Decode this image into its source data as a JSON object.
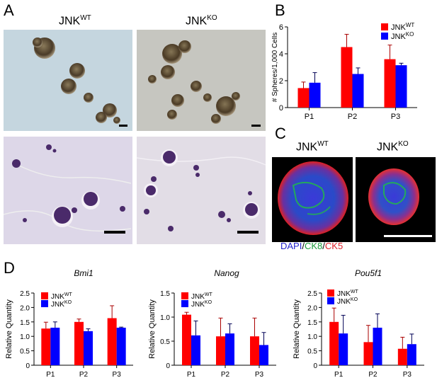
{
  "panels": {
    "a": "A",
    "b": "B",
    "c": "C",
    "d": "D"
  },
  "panel_a": {
    "col1_base": "JNK",
    "col1_sup": "WT",
    "col2_base": "JNK",
    "col2_sup": "KO"
  },
  "panel_c": {
    "col1_base": "JNK",
    "col1_sup": "WT",
    "col2_base": "JNK",
    "col2_sup": "KO",
    "stain_dapi": "DAPI",
    "stain_sep1": "/",
    "stain_ck8": "CK8",
    "stain_sep2": "/",
    "stain_ck5": "CK5",
    "dapi_color": "#2222cc",
    "ck8_color": "#1a9a3a",
    "ck5_color": "#e0202a"
  },
  "colors": {
    "wt": "#ff0000",
    "ko": "#0000ff"
  },
  "chart_data": [
    {
      "id": "B",
      "type": "bar",
      "categories": [
        "P1",
        "P2",
        "P3"
      ],
      "ylabel": "# Spheres/1,000 Cells",
      "ylim": [
        0,
        6
      ],
      "yticks": [
        0,
        2,
        4,
        6
      ],
      "legend": [
        {
          "base": "JNK",
          "sup": "WT"
        },
        {
          "base": "JNK",
          "sup": "KO"
        }
      ],
      "series": [
        {
          "values": [
            1.45,
            4.5,
            3.6
          ],
          "errors": [
            0.45,
            0.95,
            1.05
          ]
        },
        {
          "values": [
            1.85,
            2.5,
            3.15
          ],
          "errors": [
            0.75,
            0.45,
            0.15
          ]
        }
      ]
    },
    {
      "id": "Bmi1",
      "type": "bar",
      "title": "Bmi1",
      "categories": [
        "P1",
        "P2",
        "P3"
      ],
      "ylabel": "Relative Quantity",
      "ylim": [
        0,
        2.5
      ],
      "yticks": [
        "0",
        "0.5",
        "1.0",
        "1.5",
        "2.0",
        "2.5"
      ],
      "legend": [
        {
          "base": "JNK",
          "sup": "WT"
        },
        {
          "base": "JNK",
          "sup": "KO"
        }
      ],
      "series": [
        {
          "values": [
            1.27,
            1.5,
            1.63
          ],
          "errors": [
            0.22,
            0.1,
            0.43
          ]
        },
        {
          "values": [
            1.3,
            1.18,
            1.3
          ],
          "errors": [
            0.2,
            0.08,
            0.02
          ]
        }
      ]
    },
    {
      "id": "Nanog",
      "type": "bar",
      "title": "Nanog",
      "categories": [
        "P1",
        "P2",
        "P3"
      ],
      "ylabel": "Relative Quantity",
      "ylim": [
        0,
        1.5
      ],
      "yticks": [
        "0",
        "0.5",
        "1.0",
        "1.5"
      ],
      "legend": [
        {
          "base": "JNK",
          "sup": "WT"
        },
        {
          "base": "JNK",
          "sup": "KO"
        }
      ],
      "series": [
        {
          "values": [
            1.05,
            0.6,
            0.6
          ],
          "errors": [
            0.05,
            0.38,
            0.38
          ]
        },
        {
          "values": [
            0.62,
            0.66,
            0.42
          ],
          "errors": [
            0.3,
            0.2,
            0.26
          ]
        }
      ]
    },
    {
      "id": "Pou5f1",
      "type": "bar",
      "title": "Pou5f1",
      "categories": [
        "P1",
        "P2",
        "P3"
      ],
      "ylabel": "Relative Quantity",
      "ylim": [
        0,
        2.5
      ],
      "yticks": [
        "0",
        "0.5",
        "1.0",
        "1.5",
        "2.0",
        "2.5"
      ],
      "legend": [
        {
          "base": "JNK",
          "sup": "WT"
        },
        {
          "base": "JNK",
          "sup": "KO"
        }
      ],
      "series": [
        {
          "values": [
            1.5,
            0.8,
            0.57
          ],
          "errors": [
            0.48,
            0.58,
            0.4
          ]
        },
        {
          "values": [
            1.1,
            1.3,
            0.73
          ],
          "errors": [
            0.63,
            0.48,
            0.35
          ]
        }
      ]
    }
  ]
}
